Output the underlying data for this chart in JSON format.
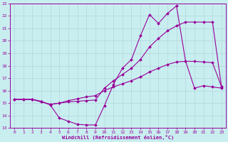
{
  "xlabel": "Windchill (Refroidissement éolien,°C)",
  "bg_color": "#c8eef0",
  "grid_color": "#b0d0d8",
  "line_color": "#990099",
  "xlim": [
    -0.5,
    23.5
  ],
  "ylim": [
    13,
    23
  ],
  "xticks": [
    0,
    1,
    2,
    3,
    4,
    5,
    6,
    7,
    8,
    9,
    10,
    11,
    12,
    13,
    14,
    15,
    16,
    17,
    18,
    19,
    20,
    21,
    22,
    23
  ],
  "yticks": [
    13,
    14,
    15,
    16,
    17,
    18,
    19,
    20,
    21,
    22,
    23
  ],
  "curve1_x": [
    0,
    1,
    2,
    3,
    4,
    5,
    6,
    7,
    8,
    9,
    10,
    11,
    12,
    13,
    14,
    15,
    16,
    17,
    18,
    19,
    20,
    21,
    22,
    23
  ],
  "curve1_y": [
    15.3,
    15.3,
    15.3,
    15.15,
    14.85,
    13.8,
    13.55,
    13.3,
    13.25,
    13.25,
    14.8,
    16.5,
    17.8,
    18.5,
    20.4,
    22.1,
    21.4,
    22.2,
    22.8,
    18.4,
    16.2,
    16.4,
    16.3,
    16.2
  ],
  "curve2_x": [
    0,
    1,
    2,
    3,
    4,
    5,
    6,
    7,
    8,
    9,
    10,
    11,
    12,
    13,
    14,
    15,
    16,
    17,
    18,
    19,
    20,
    21,
    22,
    23
  ],
  "curve2_y": [
    15.3,
    15.3,
    15.3,
    15.1,
    14.9,
    15.0,
    15.1,
    15.15,
    15.2,
    15.25,
    16.2,
    16.8,
    17.3,
    17.8,
    18.5,
    19.5,
    20.2,
    20.8,
    21.2,
    21.5,
    21.5,
    21.5,
    21.5,
    16.3
  ],
  "curve3_x": [
    0,
    1,
    2,
    3,
    4,
    5,
    6,
    7,
    8,
    9,
    10,
    11,
    12,
    13,
    14,
    15,
    16,
    17,
    18,
    19,
    20,
    21,
    22,
    23
  ],
  "curve3_y": [
    15.3,
    15.3,
    15.3,
    15.1,
    14.9,
    15.0,
    15.2,
    15.35,
    15.5,
    15.6,
    16.0,
    16.3,
    16.55,
    16.8,
    17.1,
    17.5,
    17.8,
    18.1,
    18.3,
    18.35,
    18.35,
    18.3,
    18.25,
    16.3
  ]
}
